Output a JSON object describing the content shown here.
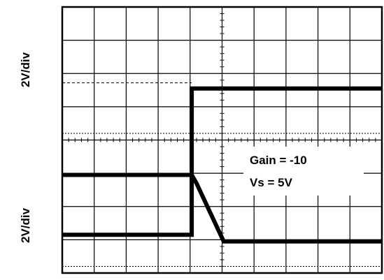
{
  "chart_data": {
    "type": "line",
    "title": "",
    "grid": true,
    "x_divisions": 10,
    "y_divisions": 8,
    "channels": [
      {
        "scale_label": "2V/div",
        "ground_ref_div": 4.2,
        "x": [
          0,
          4.05,
          4.05,
          10
        ],
        "y": [
          1.15,
          1.15,
          5.55,
          5.55
        ],
        "color": "#000000"
      },
      {
        "scale_label": "2V/div",
        "ground_ref_div": 0.2,
        "x": [
          0,
          4.05,
          4.2,
          5.05,
          10
        ],
        "y": [
          2.95,
          2.95,
          2.7,
          0.95,
          0.95
        ],
        "color": "#000000"
      }
    ],
    "annotations": [
      "Gain = -10",
      "Vs = 5V"
    ]
  }
}
